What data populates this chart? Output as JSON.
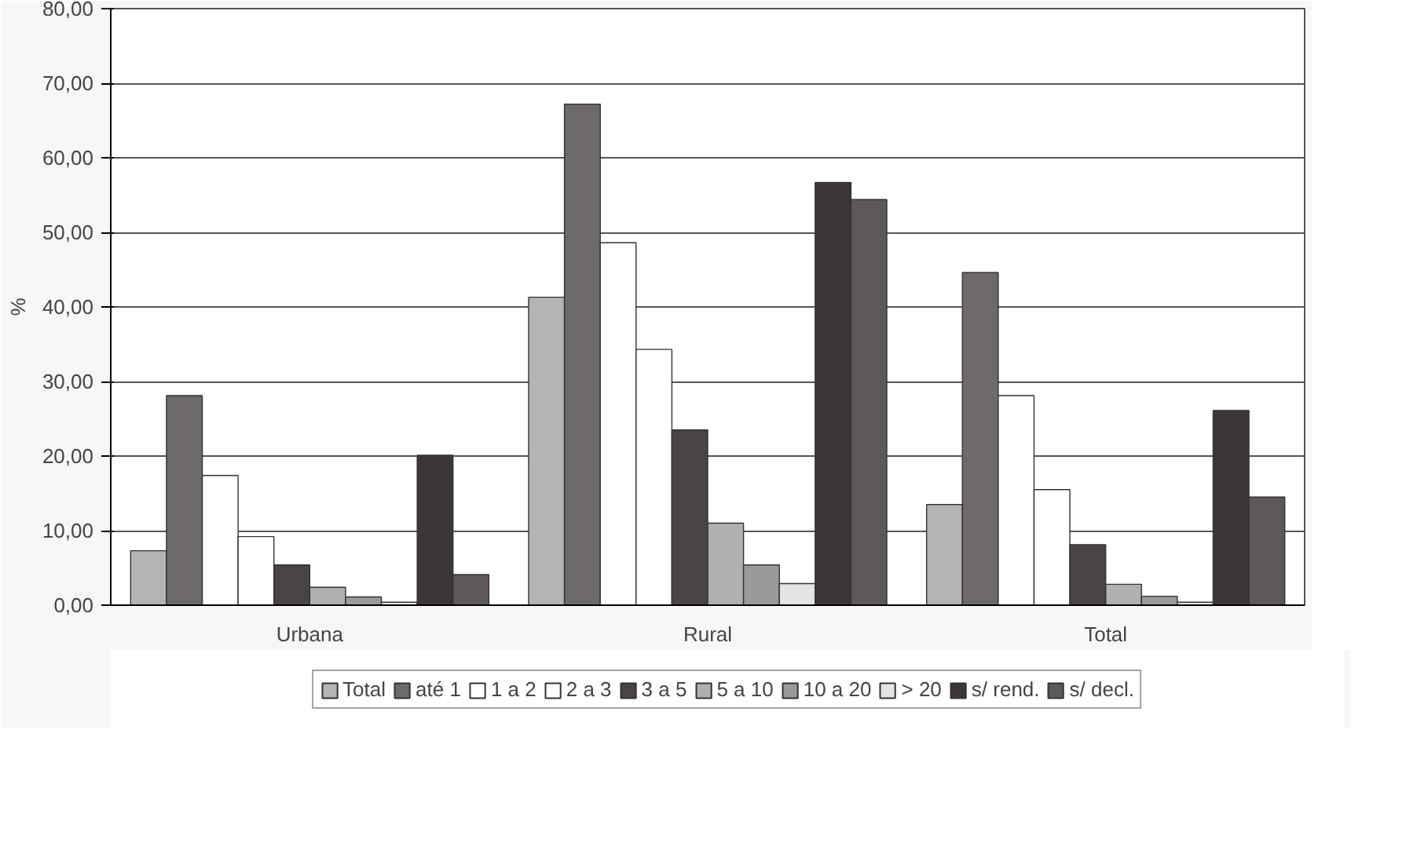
{
  "chart_data": {
    "type": "bar",
    "ylabel": "%",
    "categories": [
      "Urbana",
      "Rural",
      "Total"
    ],
    "series": [
      {
        "name": "Total",
        "color": "#b4b4b4",
        "values": [
          7.3,
          41.3,
          13.5
        ]
      },
      {
        "name": "até 1",
        "color": "#6e6a6a",
        "values": [
          28.1,
          67.2,
          44.6
        ]
      },
      {
        "name": "1 a 2",
        "color": "#ffffff",
        "values": [
          17.4,
          48.6,
          28.1
        ]
      },
      {
        "name": "2 a 3",
        "color": "#ffffff",
        "values": [
          9.2,
          34.3,
          15.5
        ]
      },
      {
        "name": "3 a 5",
        "color": "#4a4444",
        "values": [
          5.4,
          23.5,
          8.1
        ]
      },
      {
        "name": "5 a 10",
        "color": "#b0b0b0",
        "values": [
          2.4,
          11.0,
          2.8
        ]
      },
      {
        "name": "10 a 20",
        "color": "#9a9a9a",
        "values": [
          1.1,
          5.4,
          1.2
        ]
      },
      {
        "name": "> 20",
        "color": "#e4e4e4",
        "values": [
          0.4,
          2.9,
          0.4
        ]
      },
      {
        "name": "s/ rend.",
        "color": "#3c3636",
        "values": [
          20.1,
          56.7,
          26.1
        ]
      },
      {
        "name": "s/ decl.",
        "color": "#5e5858",
        "values": [
          4.1,
          54.4,
          14.5
        ]
      }
    ],
    "ylim": [
      0,
      80
    ],
    "yticks": [
      {
        "value": 0,
        "label": "0,00"
      },
      {
        "value": 10,
        "label": "10,00"
      },
      {
        "value": 20,
        "label": "20,00"
      },
      {
        "value": 30,
        "label": "30,00"
      },
      {
        "value": 40,
        "label": "40,00"
      },
      {
        "value": 50,
        "label": "50,00"
      },
      {
        "value": 60,
        "label": "60,00"
      },
      {
        "value": 70,
        "label": "70,00"
      },
      {
        "value": 80,
        "label": "80,00"
      }
    ],
    "grid": "y",
    "legend": "bottom"
  }
}
